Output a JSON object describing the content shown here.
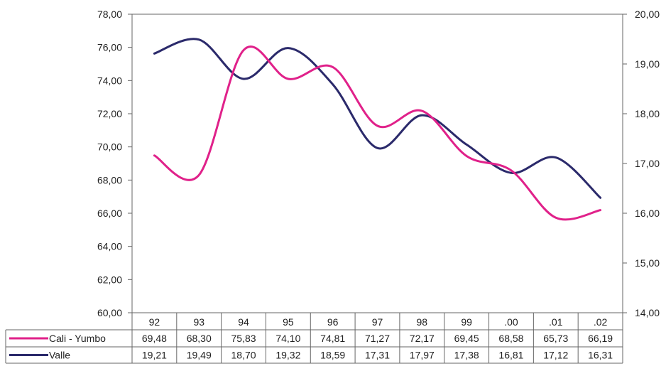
{
  "chart_data": {
    "type": "line",
    "categories": [
      "92",
      "93",
      "94",
      "95",
      "96",
      "97",
      "98",
      "99",
      ".00",
      ".01",
      ".02"
    ],
    "series": [
      {
        "name": "Cali - Yumbo",
        "axis": "left",
        "color": "#e0218a",
        "values": [
          69.48,
          68.3,
          75.83,
          74.1,
          74.81,
          71.27,
          72.17,
          69.45,
          68.58,
          65.73,
          66.19
        ],
        "labels": [
          "69,48",
          "68,30",
          "75,83",
          "74,10",
          "74,81",
          "71,27",
          "72,17",
          "69,45",
          "68,58",
          "65,73",
          "66,19"
        ]
      },
      {
        "name": "Valle",
        "axis": "right",
        "color": "#2b2a6b",
        "values": [
          19.21,
          19.49,
          18.7,
          19.32,
          18.59,
          17.31,
          17.97,
          17.38,
          16.81,
          17.12,
          16.31
        ],
        "labels": [
          "19,21",
          "19,49",
          "18,70",
          "19,32",
          "18,59",
          "17,31",
          "17,97",
          "17,38",
          "16,81",
          "17,12",
          "16,31"
        ]
      }
    ],
    "y_left": {
      "range": [
        60,
        78
      ],
      "ticks": [
        78,
        76,
        74,
        72,
        70,
        68,
        66,
        64,
        62,
        60
      ],
      "tick_labels": [
        "78,00",
        "76,00",
        "74,00",
        "72,00",
        "70,00",
        "68,00",
        "66,00",
        "64,00",
        "62,00",
        "60,00"
      ]
    },
    "y_right": {
      "range": [
        14,
        20
      ],
      "ticks": [
        20,
        19,
        18,
        17,
        16,
        15,
        14
      ],
      "tick_labels": [
        "20,00",
        "19,00",
        "18,00",
        "17,00",
        "16,00",
        "15,00",
        "14,00"
      ]
    },
    "grid": false,
    "legend": "data-table-below"
  }
}
